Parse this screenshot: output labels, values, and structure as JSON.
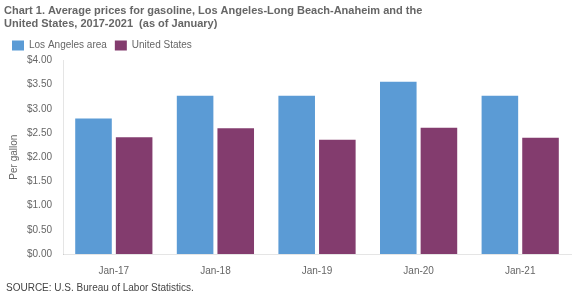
{
  "chart_data": {
    "type": "bar",
    "title": [
      "Chart 1. Average prices for gasoline, Los Angeles-Long Beach-Anaheim and the",
      "United States, 2017-2021  (as of January)"
    ],
    "y_label": "Per gallon",
    "annotations": [
      "SOURCE: U.S. Bureau of Labor Statistics."
    ],
    "categories": [
      "Jan-17",
      "Jan-18",
      "Jan-19",
      "Jan-20",
      "Jan-21"
    ],
    "series": [
      {
        "name": "Los Angeles area",
        "color": "#5B9BD5",
        "values": [
          2.8,
          3.27,
          3.27,
          3.56,
          3.27
        ]
      },
      {
        "name": "United States",
        "color": "#833C6E",
        "values": [
          2.41,
          2.6,
          2.36,
          2.61,
          2.4
        ]
      }
    ],
    "ylim": [
      0,
      4.0
    ],
    "yticks": [
      {
        "value": 0.0,
        "label": "$0.00"
      },
      {
        "value": 0.5,
        "label": "$0.50"
      },
      {
        "value": 1.0,
        "label": "$1.00"
      },
      {
        "value": 1.5,
        "label": "$1.50"
      },
      {
        "value": 2.0,
        "label": "$2.00"
      },
      {
        "value": 2.5,
        "label": "$2.50"
      },
      {
        "value": 3.0,
        "label": "$3.00"
      },
      {
        "value": 3.5,
        "label": "$3.50"
      },
      {
        "value": 4.0,
        "label": "$4.00"
      }
    ],
    "grid": false,
    "legend": "upper left"
  }
}
